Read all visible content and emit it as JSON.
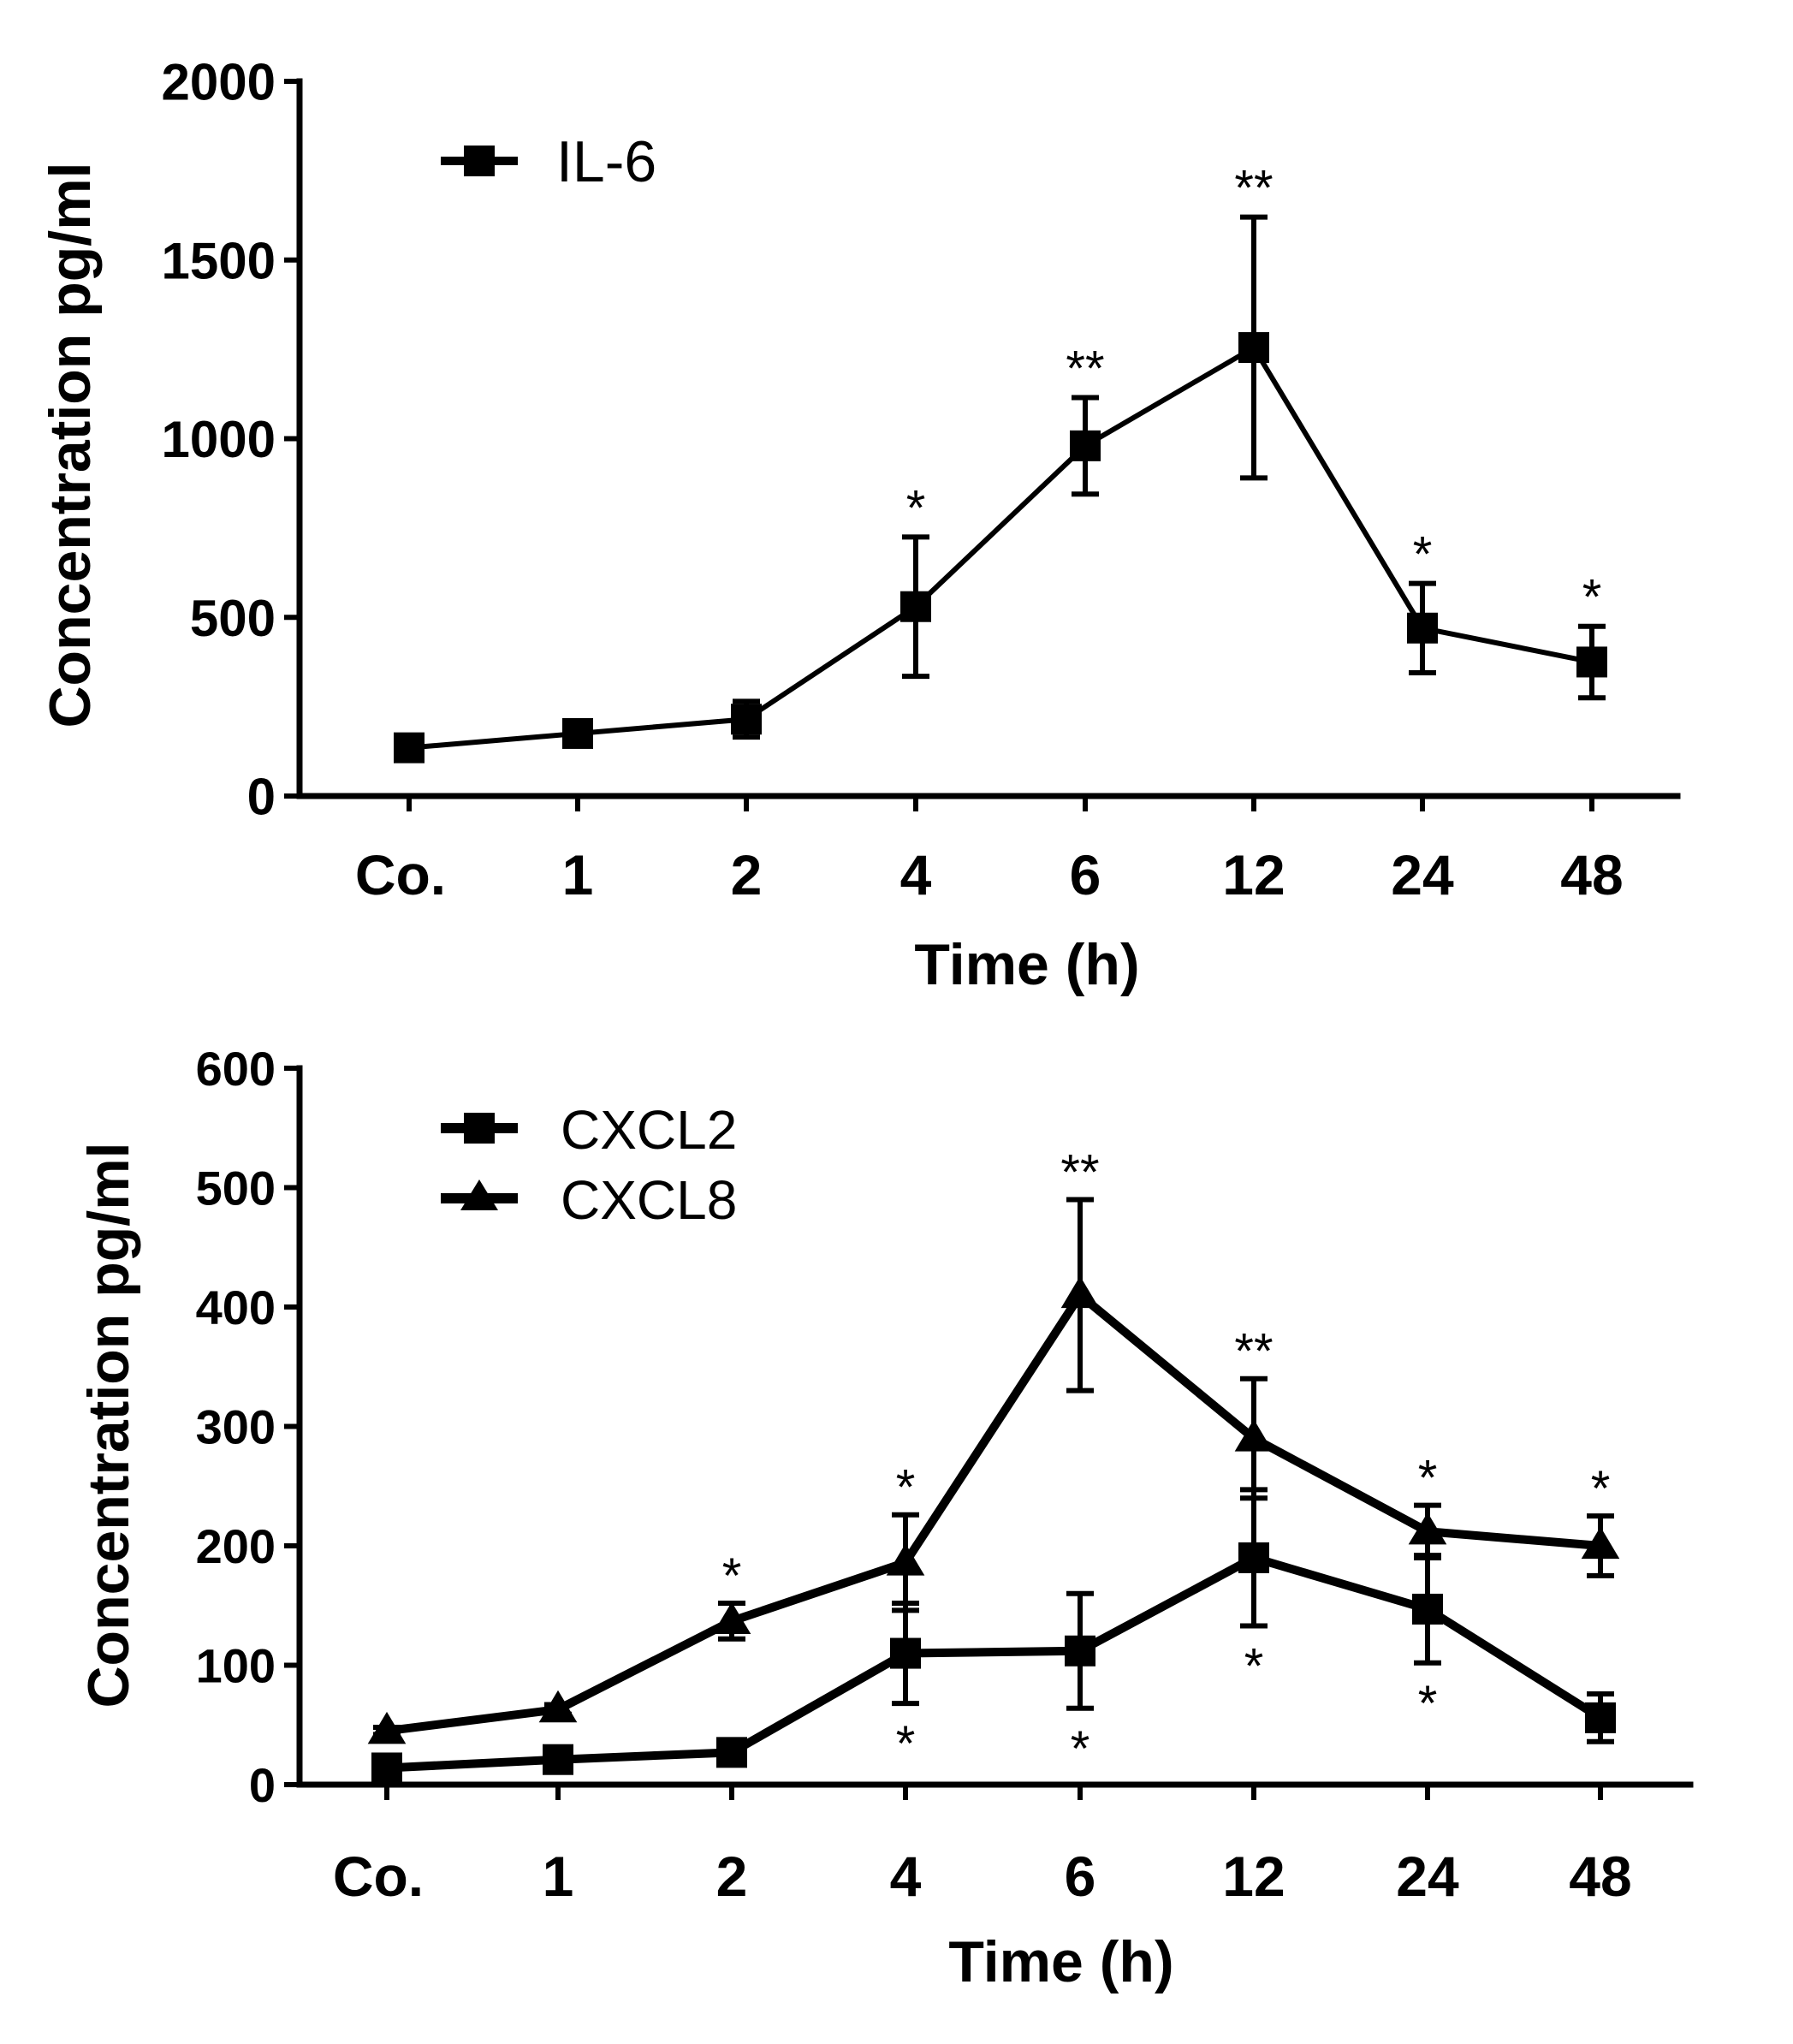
{
  "chart_data": [
    {
      "type": "line",
      "categories": [
        "Co.",
        "1",
        "2",
        "4",
        "6",
        "12",
        "24",
        "48"
      ],
      "xlabel": "Time (h)",
      "ylabel": "Concentration pg/ml",
      "ylim": [
        0,
        2000
      ],
      "yticks": [
        0,
        500,
        1000,
        1500,
        2000
      ],
      "legend_position": "top-left",
      "grid": false,
      "series": [
        {
          "name": "IL-6",
          "marker": "square",
          "values": [
            135,
            175,
            215,
            530,
            980,
            1255,
            470,
            375
          ],
          "err": [
            20,
            35,
            50,
            195,
            135,
            365,
            125,
            100
          ],
          "significance": [
            "",
            "",
            "",
            "*",
            "**",
            "**",
            "*",
            "*"
          ],
          "sig_side": "above"
        }
      ]
    },
    {
      "type": "line",
      "categories": [
        "Co.",
        "1",
        "2",
        "4",
        "6",
        "12",
        "24",
        "48"
      ],
      "xlabel": "Time (h)",
      "ylabel": "Concentration pg/ml",
      "ylim": [
        0,
        600
      ],
      "yticks": [
        0,
        100,
        200,
        300,
        400,
        500,
        600
      ],
      "legend_position": "top-left",
      "grid": false,
      "series": [
        {
          "name": "CXCL2",
          "marker": "square",
          "values": [
            14,
            21,
            27,
            110,
            112,
            190,
            147,
            56
          ],
          "err": [
            3,
            5,
            5,
            42,
            48,
            57,
            45,
            20
          ],
          "significance": [
            "",
            "",
            "",
            "*",
            "*",
            "*",
            "*",
            ""
          ],
          "sig_side": "below"
        },
        {
          "name": "CXCL8",
          "marker": "triangle",
          "values": [
            45,
            63,
            137,
            186,
            410,
            290,
            212,
            200
          ],
          "err": [
            3,
            4,
            15,
            40,
            80,
            50,
            22,
            25
          ],
          "significance": [
            "",
            "",
            "*",
            "*",
            "**",
            "**",
            "*",
            "*"
          ],
          "sig_side": "above"
        }
      ]
    }
  ]
}
